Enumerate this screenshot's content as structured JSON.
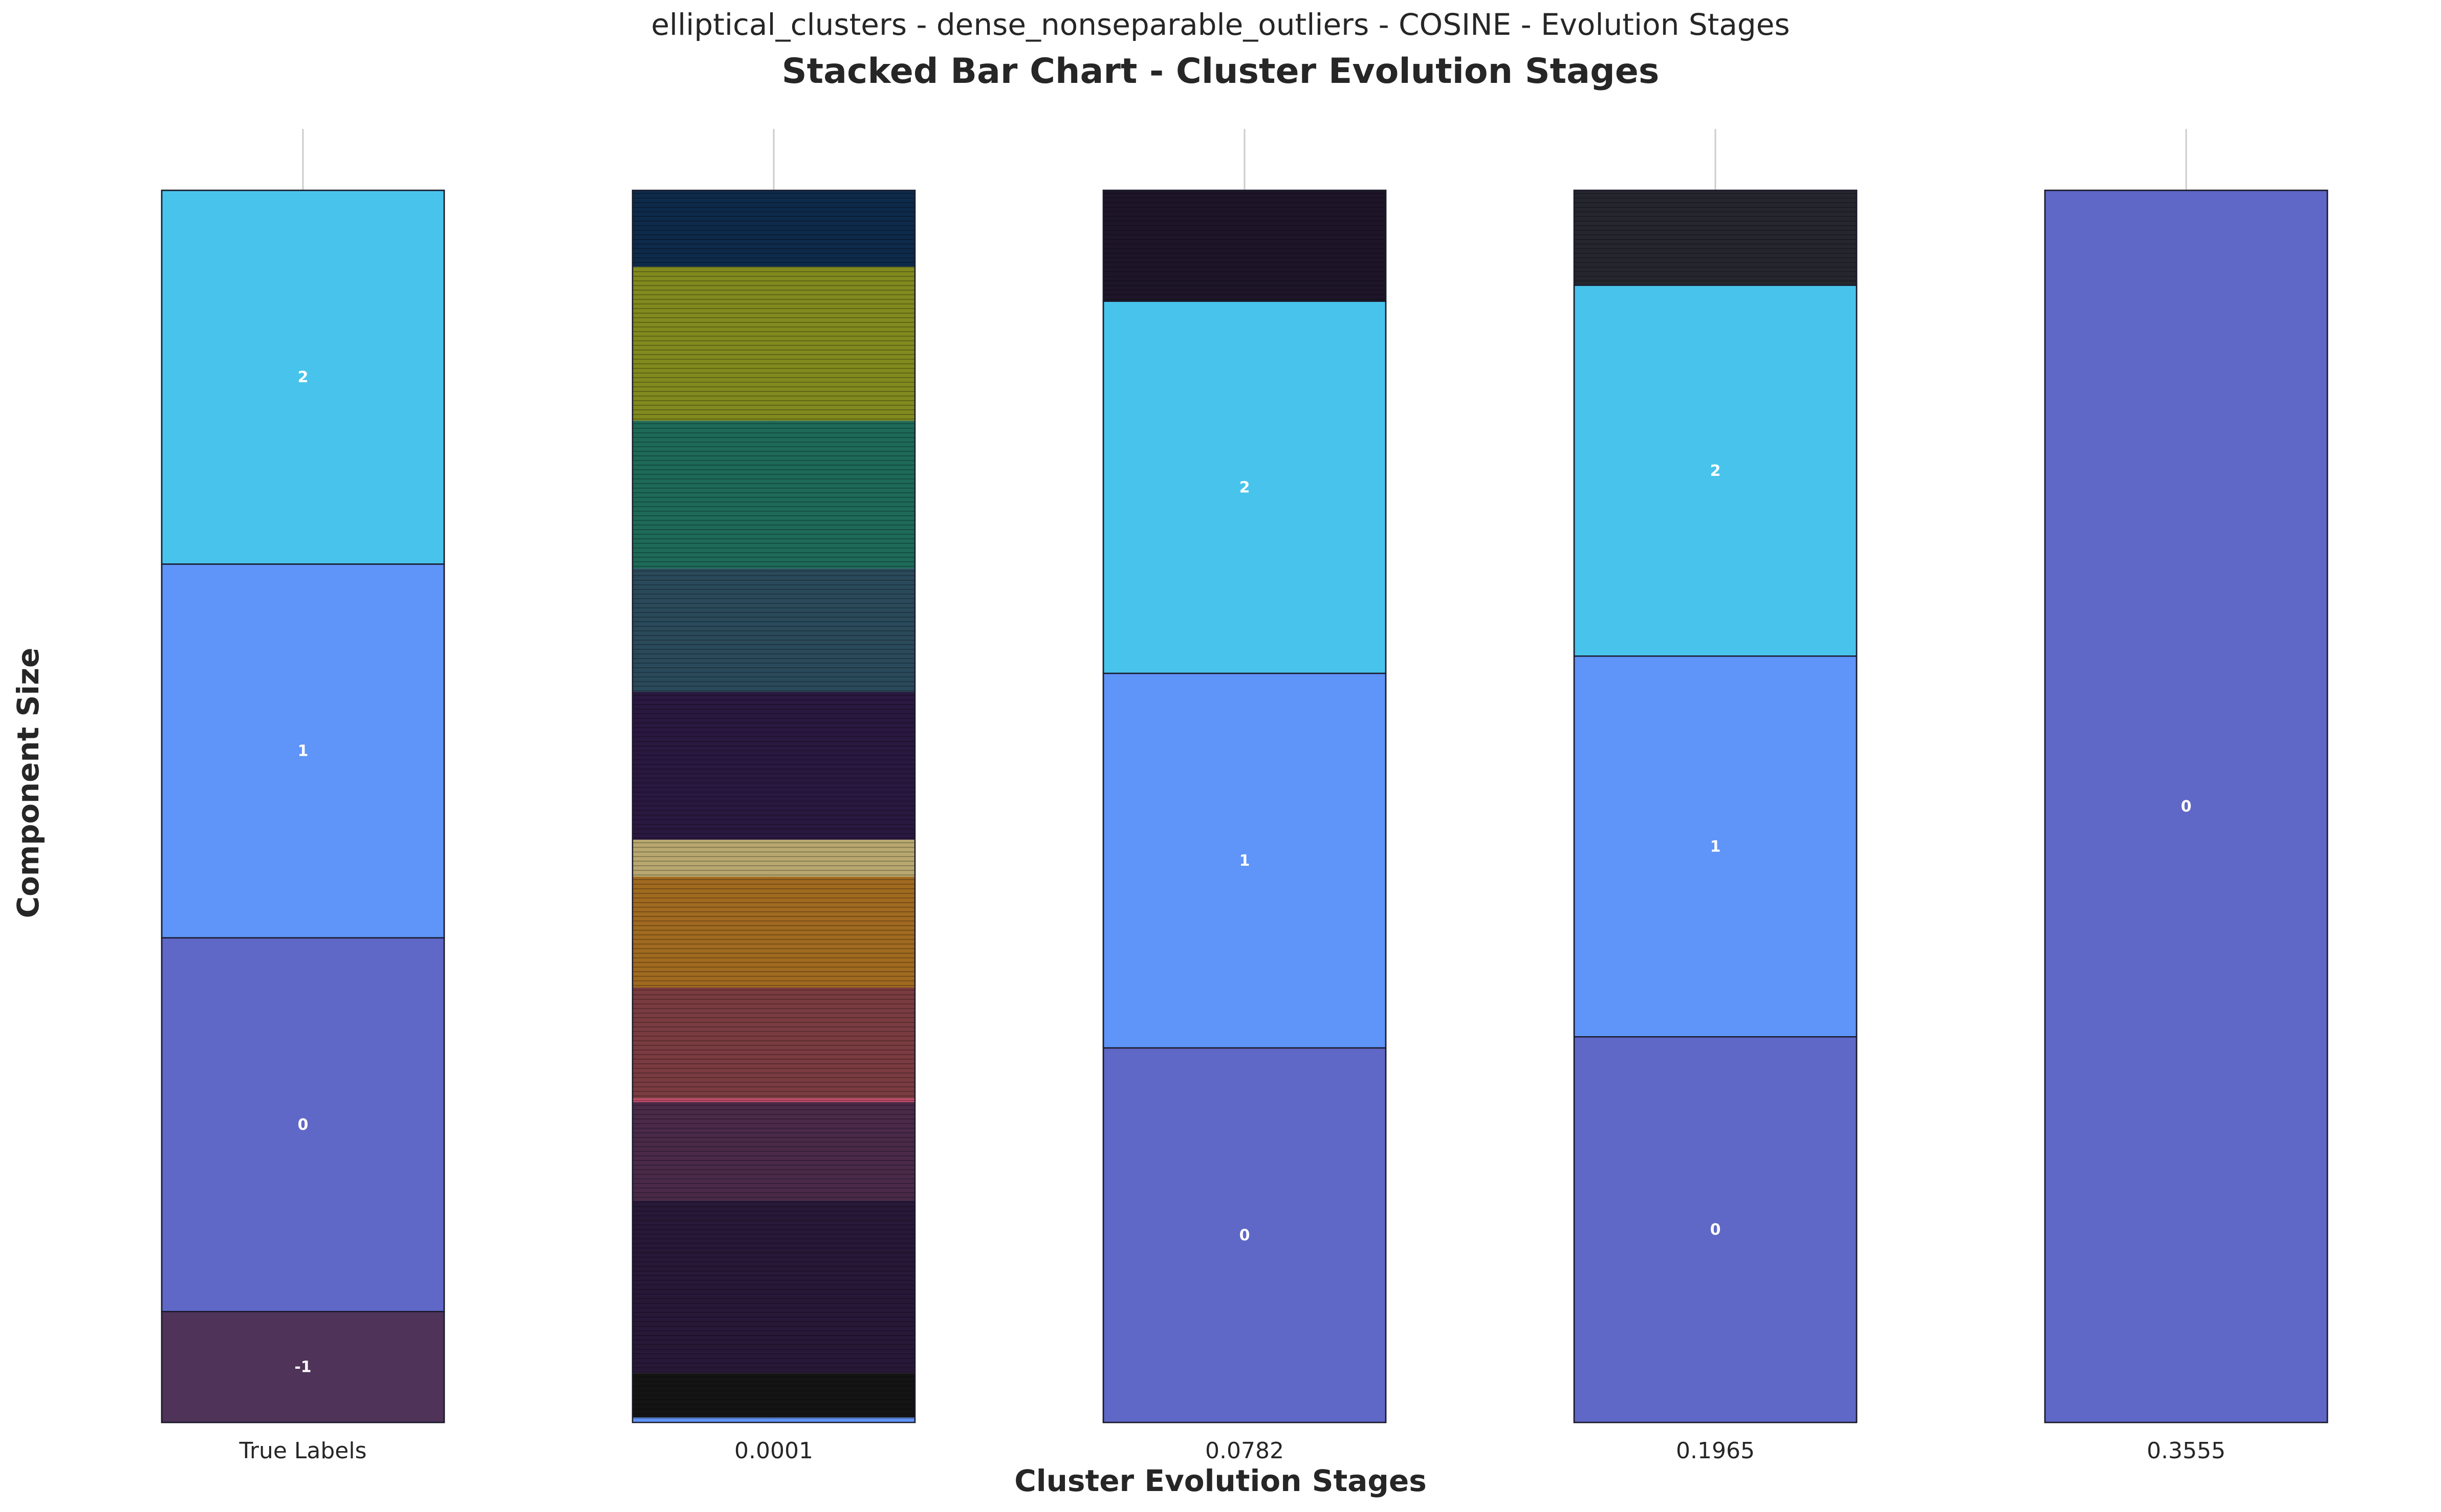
{
  "suptitle": "elliptical_clusters - dense_nonseparable_outliers - COSINE - Evolution Stages",
  "chart_data": {
    "type": "bar",
    "stacked": true,
    "title": "Stacked Bar Chart - Cluster Evolution Stages",
    "xlabel": "Cluster Evolution Stages",
    "ylabel": "Component Size",
    "categories": [
      "True Labels",
      "0.0001",
      "0.0782",
      "0.1965",
      "0.3555"
    ],
    "y_ticks_shown": false,
    "grid": "vertical",
    "bars": [
      {
        "category": "True Labels",
        "segments": [
          {
            "label": "-1",
            "value": 9,
            "color": "#4f3358"
          },
          {
            "label": "0",
            "value": 30.33,
            "color": "#5f68c6"
          },
          {
            "label": "1",
            "value": 30.33,
            "color": "#5f94f8"
          },
          {
            "label": "2",
            "value": 30.33,
            "color": "#48c4ec"
          }
        ]
      },
      {
        "category": "0.0001",
        "note": "hundreds of tiny single-point segments",
        "segments": [
          {
            "label": "",
            "value": 0.4,
            "color": "#5f94f8"
          },
          {
            "label": "",
            "value": 3.6,
            "color": "#141414"
          },
          {
            "label": "",
            "value": 14,
            "color": "#281838"
          },
          {
            "label": "",
            "value": 8,
            "color": "#4a2a48"
          },
          {
            "label": "",
            "value": 0.3,
            "color": "#c04a6a"
          },
          {
            "label": "",
            "value": 9,
            "color": "#7a3c40"
          },
          {
            "label": "",
            "value": 9,
            "color": "#a06a20"
          },
          {
            "label": "",
            "value": 3,
            "color": "#b8a870"
          },
          {
            "label": "",
            "value": 12,
            "color": "#2a1840"
          },
          {
            "label": "",
            "value": 10,
            "color": "#2a4a5a"
          },
          {
            "label": "",
            "value": 12,
            "color": "#1e6a58"
          },
          {
            "label": "",
            "value": 12.5,
            "color": "#808a1e"
          },
          {
            "label": "",
            "value": 6.2,
            "color": "#0e2a4a"
          }
        ]
      },
      {
        "category": "0.0782",
        "segments": [
          {
            "label": "0",
            "value": 30.4,
            "color": "#5f68c6"
          },
          {
            "label": "1",
            "value": 30.4,
            "color": "#5f94f8"
          },
          {
            "label": "2",
            "value": 30.2,
            "color": "#48c4ec"
          },
          {
            "label": "",
            "value": 9,
            "color": "#1e1628"
          }
        ]
      },
      {
        "category": "0.1965",
        "segments": [
          {
            "label": "0",
            "value": 31.3,
            "color": "#5f68c6"
          },
          {
            "label": "1",
            "value": 30.9,
            "color": "#5f94f8"
          },
          {
            "label": "2",
            "value": 30.1,
            "color": "#48c4ec"
          },
          {
            "label": "",
            "value": 7.7,
            "color": "#26262e"
          }
        ]
      },
      {
        "category": "0.3555",
        "segments": [
          {
            "label": "0",
            "value": 100,
            "color": "#5f68c6"
          }
        ]
      }
    ]
  }
}
